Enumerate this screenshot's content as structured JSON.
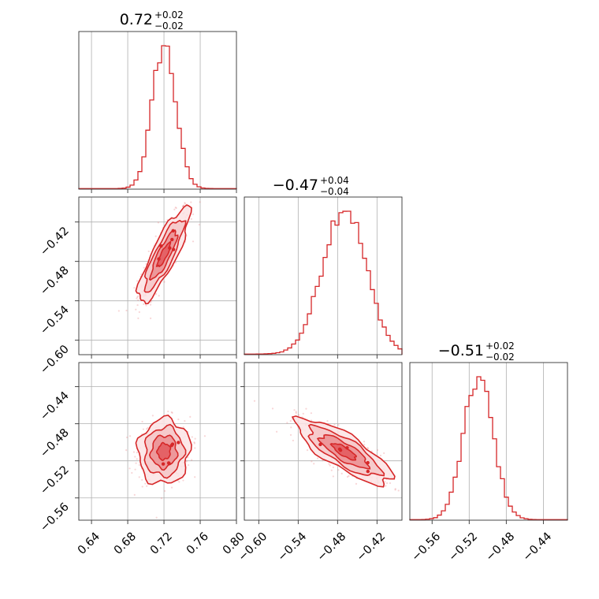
{
  "chart_data": {
    "type": "corner",
    "accent_color": "#d62728",
    "fill_colors": [
      "#f4c6c7",
      "#eb8f92",
      "#e2585d"
    ],
    "grid": true,
    "parameters": [
      {
        "id": "p1",
        "median": 0.72,
        "title": "0.72",
        "err_plus": "+0.02",
        "err_minus": "−0.02",
        "range": [
          0.626,
          0.8
        ],
        "ticks": [
          0.64,
          0.68,
          0.72,
          0.76,
          0.8
        ],
        "tick_labels": [
          "0.64",
          "0.68",
          "0.72",
          "0.76",
          "0.80"
        ],
        "hist_sigma": 0.013
      },
      {
        "id": "p2",
        "median": -0.47,
        "title": "−0.47",
        "err_plus": "+0.04",
        "err_minus": "−0.04",
        "range": [
          -0.622,
          -0.382
        ],
        "ticks": [
          -0.6,
          -0.54,
          -0.48,
          -0.42
        ],
        "tick_labels": [
          "−0.60",
          "−0.54",
          "−0.48",
          "−0.42"
        ],
        "hist_sigma": 0.033
      },
      {
        "id": "p3",
        "median": -0.51,
        "title": "−0.51",
        "err_plus": "+0.02",
        "err_minus": "−0.02",
        "range": [
          -0.584,
          -0.414
        ],
        "ticks": [
          -0.56,
          -0.52,
          -0.48,
          -0.44
        ],
        "tick_labels": [
          "−0.56",
          "−0.52",
          "−0.48",
          "−0.44"
        ],
        "hist_sigma": 0.016
      }
    ],
    "pairs": [
      {
        "x": "p1",
        "y": "p2",
        "correlation": 0.85,
        "y_ticks": [
          -0.42,
          -0.48,
          -0.54,
          -0.6
        ],
        "y_tick_labels": [
          "−0.42",
          "−0.48",
          "−0.54",
          "−0.60"
        ]
      },
      {
        "x": "p1",
        "y": "p3",
        "correlation": 0.05,
        "y_ticks": [
          -0.44,
          -0.48,
          -0.52,
          -0.56
        ],
        "y_tick_labels": [
          "−0.44",
          "−0.48",
          "−0.52",
          "−0.56"
        ]
      },
      {
        "x": "p2",
        "y": "p3",
        "correlation": -0.8
      }
    ],
    "contour_levels_sigma": [
      0.5,
      1.0,
      1.5,
      2.0
    ]
  }
}
